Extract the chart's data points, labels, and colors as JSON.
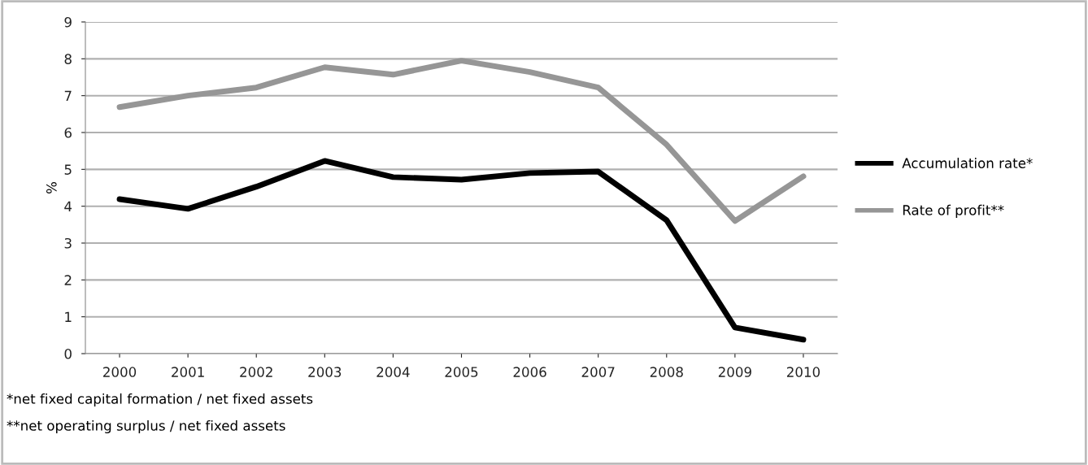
{
  "chart_data": {
    "type": "line",
    "ylabel": "%",
    "categories": [
      "2000",
      "2001",
      "2002",
      "2003",
      "2004",
      "2005",
      "2006",
      "2007",
      "2008",
      "2009",
      "2010"
    ],
    "series": [
      {
        "name": "Accumulation rate*",
        "color": "#000000",
        "values": [
          4.19,
          3.93,
          4.53,
          5.23,
          4.79,
          4.72,
          4.9,
          4.94,
          3.62,
          0.71,
          0.38
        ]
      },
      {
        "name": "Rate of profit**",
        "color": "#969696",
        "values": [
          6.69,
          7.0,
          7.22,
          7.77,
          7.57,
          7.95,
          7.64,
          7.22,
          5.67,
          3.6,
          4.81
        ]
      }
    ],
    "ylim": [
      0,
      9
    ],
    "yticks": [
      0,
      1,
      2,
      3,
      4,
      5,
      6,
      7,
      8,
      9
    ],
    "grid": "y",
    "legend": "right",
    "marker": "none",
    "line_style": "solid",
    "annotations": [
      "*net fixed capital formation / net fixed assets",
      "**net operating surplus / net fixed assets"
    ]
  }
}
